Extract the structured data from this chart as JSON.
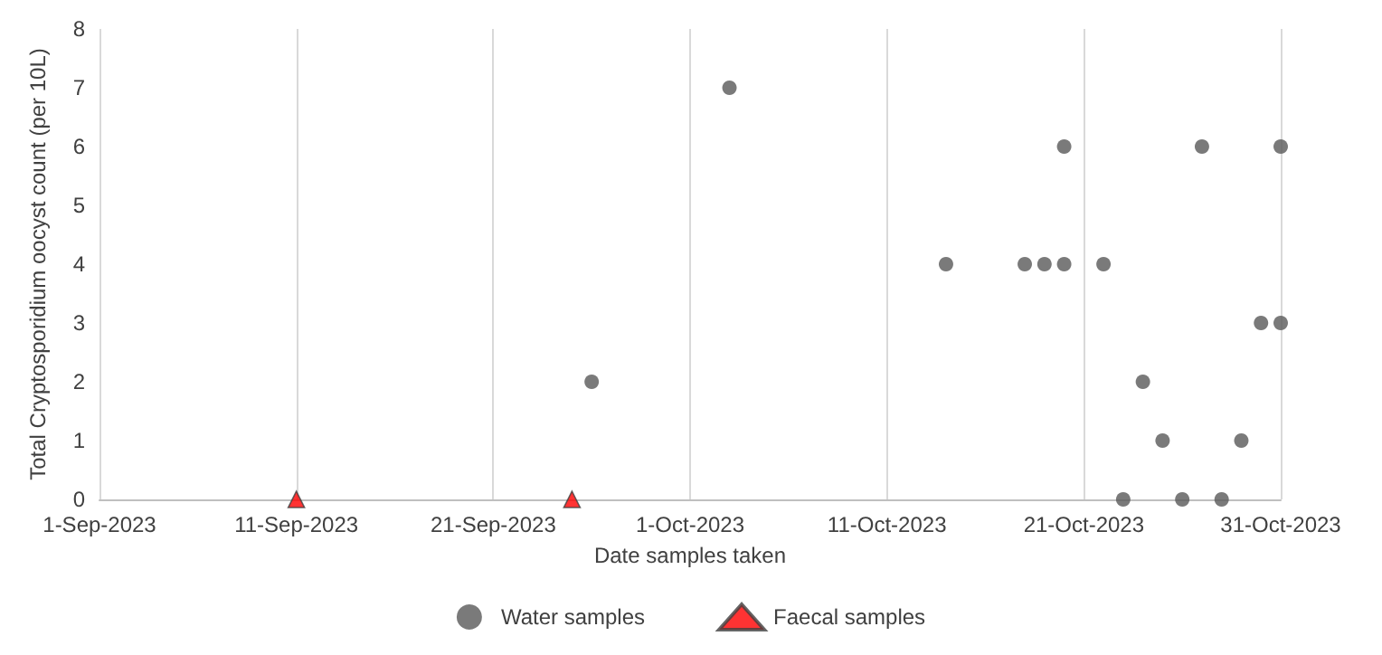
{
  "chart_data": {
    "type": "scatter",
    "xlabel": "Date samples taken",
    "ylabel": "Total Cryptosporidium oocyst count (per 10L)",
    "series": [
      {
        "name": "Water samples",
        "color": "#595959",
        "marker": "circle",
        "x": [
          "2023-09-26",
          "2023-10-03",
          "2023-10-14",
          "2023-10-18",
          "2023-10-19",
          "2023-10-20",
          "2023-10-20",
          "2023-10-22",
          "2023-10-23",
          "2023-10-24",
          "2023-10-25",
          "2023-10-26",
          "2023-10-27",
          "2023-10-28",
          "2023-10-29",
          "2023-10-30",
          "2023-10-31",
          "2023-10-31"
        ],
        "values": [
          2,
          7,
          4,
          4,
          4,
          4,
          6,
          4,
          0,
          2,
          1,
          0,
          6,
          0,
          1,
          3,
          3,
          6
        ]
      },
      {
        "name": "Faecal samples",
        "color": "#ff0000",
        "marker": "triangle",
        "x": [
          "2023-09-11",
          "2023-09-25"
        ],
        "values": [
          0,
          0
        ]
      }
    ],
    "xlim": [
      "2023-09-01",
      "2023-10-31"
    ],
    "xticks": [
      {
        "value": "2023-09-01",
        "label": "1-Sep-2023"
      },
      {
        "value": "2023-09-11",
        "label": "11-Sep-2023"
      },
      {
        "value": "2023-09-21",
        "label": "21-Sep-2023"
      },
      {
        "value": "2023-10-01",
        "label": "1-Oct-2023"
      },
      {
        "value": "2023-10-11",
        "label": "11-Oct-2023"
      },
      {
        "value": "2023-10-21",
        "label": "21-Oct-2023"
      },
      {
        "value": "2023-10-31",
        "label": "31-Oct-2023"
      }
    ],
    "ylim": [
      0,
      8
    ],
    "yticks": [
      0,
      1,
      2,
      3,
      4,
      5,
      6,
      7,
      8
    ],
    "grid": "x",
    "legend": "bottom"
  }
}
